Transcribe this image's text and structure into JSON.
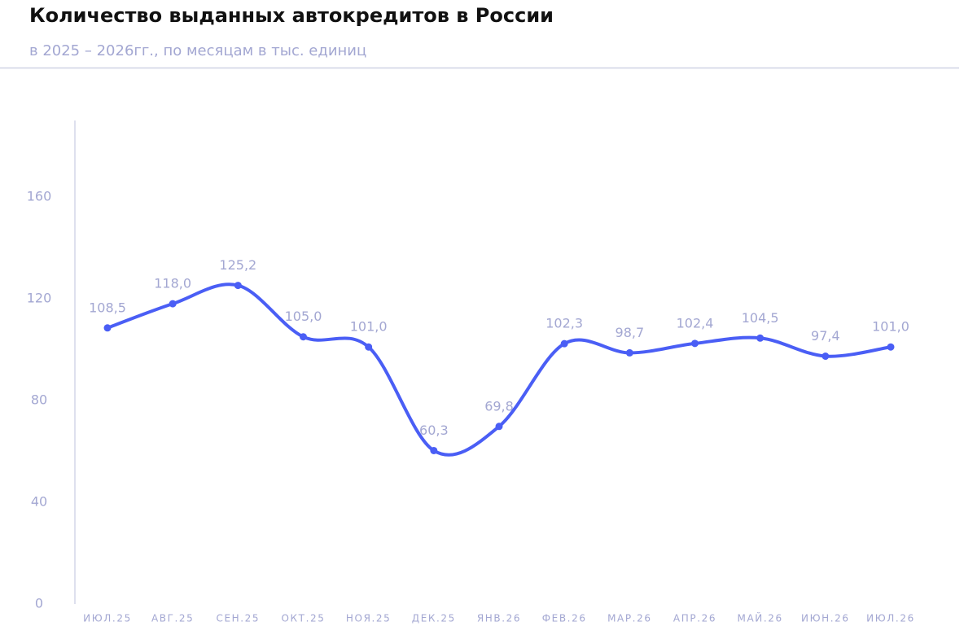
{
  "chart_data": {
    "type": "line",
    "title": "Количество выданных автокредитов в России",
    "subtitle": "в 2025 – 2026гг., по месяцам в тыс. единиц",
    "categories": [
      "ИЮЛ.25",
      "АВГ.25",
      "СЕН.25",
      "ОКТ.25",
      "НОЯ.25",
      "ДЕК.25",
      "ЯНВ.26",
      "ФЕВ.26",
      "МАР.26",
      "АПР.26",
      "МАЙ.26",
      "ИЮН.26",
      "ИЮЛ.26"
    ],
    "values": [
      108.5,
      118.0,
      125.2,
      105.0,
      101.0,
      60.3,
      69.8,
      102.3,
      98.7,
      102.4,
      104.5,
      97.4,
      101.0
    ],
    "value_labels": [
      "108,5",
      "118,0",
      "125,2",
      "105,0",
      "101,0",
      "60,3",
      "69,8",
      "102,3",
      "98,7",
      "102,4",
      "104,5",
      "97,4",
      "101,0"
    ],
    "color": "#4a5ef5",
    "smooth": true,
    "ylim": [
      0,
      190
    ],
    "yticks": [
      0,
      40,
      80,
      120,
      160
    ],
    "grid": false
  }
}
